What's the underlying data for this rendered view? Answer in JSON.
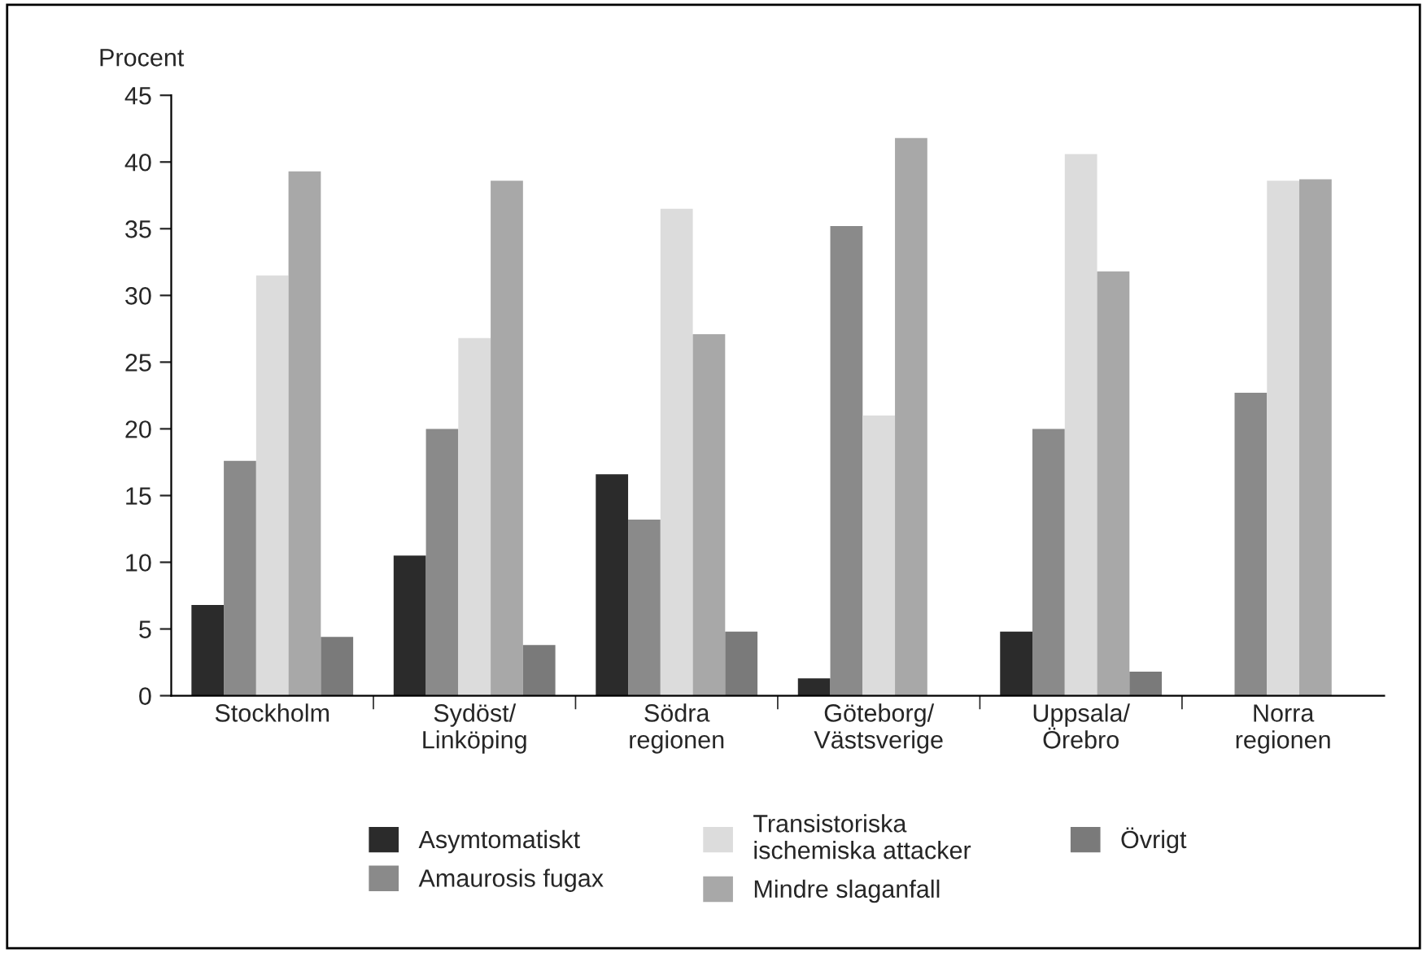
{
  "chart_data": {
    "type": "bar",
    "ylabel": "Procent",
    "categories": [
      "Stockholm",
      "Sydöst/\nLinköping",
      "Södra\nregionen",
      "Göteborg/\nVästsverige",
      "Uppsala/\nÖrebro",
      "Norra\nregionen"
    ],
    "series": [
      {
        "name": "Asymtomatiskt",
        "color": "#2b2b2b",
        "values": [
          6.8,
          10.5,
          16.6,
          1.3,
          4.8,
          null
        ]
      },
      {
        "name": "Amaurosis fugax",
        "color": "#8a8a8a",
        "values": [
          17.6,
          20.0,
          13.2,
          35.2,
          20.0,
          22.7
        ]
      },
      {
        "name": "Transistoriska\nischemiska attacker",
        "color": "#dcdcdc",
        "values": [
          31.5,
          26.8,
          36.5,
          21.0,
          40.6,
          38.6
        ]
      },
      {
        "name": "Mindre slaganfall",
        "color": "#a8a8a8",
        "values": [
          39.3,
          38.6,
          27.1,
          41.8,
          31.8,
          38.7
        ]
      },
      {
        "name": "Övrigt",
        "color": "#7a7a7a",
        "values": [
          4.4,
          3.8,
          4.8,
          null,
          1.8,
          null
        ]
      }
    ],
    "ylim": [
      0,
      45
    ],
    "yticks": [
      0,
      5,
      10,
      15,
      20,
      25,
      30,
      35,
      40,
      45
    ],
    "grid": false,
    "legend": "bottom"
  }
}
